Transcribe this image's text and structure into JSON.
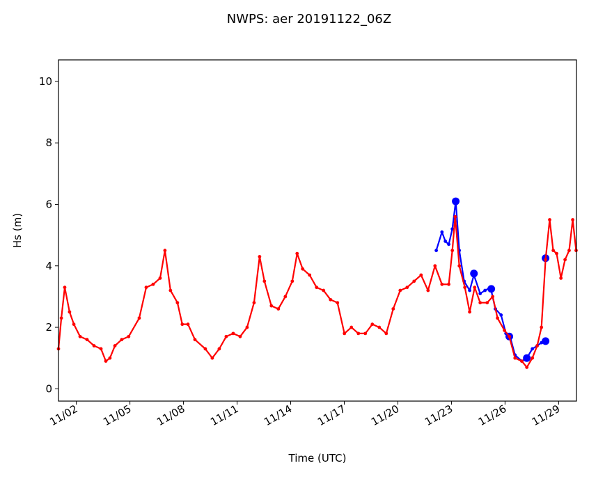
{
  "chart_data": {
    "type": "line",
    "title": "NWPS: aer 20191122_06Z",
    "xlabel": "Time (UTC)",
    "ylabel": "Hs (m)",
    "xlim": [
      1,
      30
    ],
    "ylim": [
      -0.4,
      10.7
    ],
    "xticks": [
      {
        "value": 2,
        "label": "11/02"
      },
      {
        "value": 5,
        "label": "11/05"
      },
      {
        "value": 8,
        "label": "11/08"
      },
      {
        "value": 11,
        "label": "11/11"
      },
      {
        "value": 14,
        "label": "11/14"
      },
      {
        "value": 17,
        "label": "11/17"
      },
      {
        "value": 20,
        "label": "11/20"
      },
      {
        "value": 23,
        "label": "11/23"
      },
      {
        "value": 26,
        "label": "11/26"
      },
      {
        "value": 29,
        "label": "11/29"
      }
    ],
    "yticks": [
      0,
      2,
      4,
      6,
      8,
      10
    ],
    "grid": false,
    "series": [
      {
        "color": "#0000ff",
        "style": "line",
        "x": [
          22.15,
          22.47,
          22.66,
          22.85,
          23.05,
          23.24,
          23.44,
          23.71,
          24.02,
          24.26,
          24.61,
          24.88,
          25.19,
          25.46,
          25.78,
          26.05,
          26.28,
          26.56,
          26.94,
          27.22,
          27.53,
          27.8,
          28.04,
          28.27
        ],
        "values": [
          4.5,
          5.1,
          4.8,
          4.7,
          5.2,
          6.1,
          4.5,
          3.5,
          3.2,
          3.7,
          3.1,
          3.2,
          3.3,
          2.6,
          2.4,
          1.8,
          1.7,
          1.1,
          0.9,
          1.0,
          1.3,
          1.4,
          1.5,
          1.55
        ]
      },
      {
        "color": "#0000ff",
        "style": "points",
        "x": [
          23.24,
          24.26,
          25.23,
          26.24,
          27.22,
          28.27,
          28.27
        ],
        "values": [
          6.1,
          3.75,
          3.25,
          1.7,
          1.0,
          4.25,
          1.55
        ]
      },
      {
        "color": "#ff0000",
        "style": "line",
        "x": [
          1.0,
          1.16,
          1.35,
          1.62,
          1.86,
          2.21,
          2.6,
          2.99,
          3.38,
          3.65,
          3.88,
          4.16,
          4.54,
          4.93,
          5.52,
          5.91,
          6.3,
          6.69,
          6.96,
          7.27,
          7.66,
          7.93,
          8.25,
          8.64,
          9.22,
          9.61,
          10.0,
          10.39,
          10.78,
          11.17,
          11.56,
          11.95,
          12.26,
          12.53,
          12.92,
          13.31,
          13.7,
          14.09,
          14.36,
          14.67,
          15.06,
          15.45,
          15.84,
          16.23,
          16.62,
          17.01,
          17.4,
          17.79,
          18.18,
          18.57,
          18.96,
          19.35,
          19.74,
          20.13,
          20.52,
          20.91,
          21.3,
          21.69,
          22.08,
          22.47,
          22.85,
          23.05,
          23.21,
          23.44,
          23.75,
          24.02,
          24.3,
          24.61,
          25.0,
          25.31,
          25.58,
          25.97,
          26.24,
          26.56,
          26.94,
          27.22,
          27.53,
          27.8,
          28.04,
          28.27,
          28.5,
          28.7,
          28.89,
          29.13,
          29.36,
          29.59,
          29.79,
          29.98
        ],
        "values": [
          1.3,
          2.3,
          3.3,
          2.5,
          2.1,
          1.7,
          1.6,
          1.4,
          1.3,
          0.9,
          1.0,
          1.4,
          1.6,
          1.7,
          2.3,
          3.3,
          3.4,
          3.6,
          4.5,
          3.2,
          2.8,
          2.1,
          2.1,
          1.6,
          1.3,
          1.0,
          1.3,
          1.7,
          1.8,
          1.7,
          2.0,
          2.8,
          4.3,
          3.5,
          2.7,
          2.6,
          3.0,
          3.5,
          4.4,
          3.9,
          3.7,
          3.3,
          3.2,
          2.9,
          2.8,
          1.8,
          2.0,
          1.8,
          1.8,
          2.1,
          2.0,
          1.8,
          2.6,
          3.2,
          3.3,
          3.5,
          3.7,
          3.2,
          4.0,
          3.4,
          3.4,
          4.5,
          5.6,
          4.0,
          3.3,
          2.5,
          3.3,
          2.8,
          2.8,
          3.0,
          2.3,
          1.9,
          1.7,
          1.0,
          0.9,
          0.7,
          1.0,
          1.4,
          2.0,
          4.2,
          5.5,
          4.5,
          4.4,
          3.6,
          4.2,
          4.5,
          5.5,
          4.5
        ]
      }
    ]
  }
}
